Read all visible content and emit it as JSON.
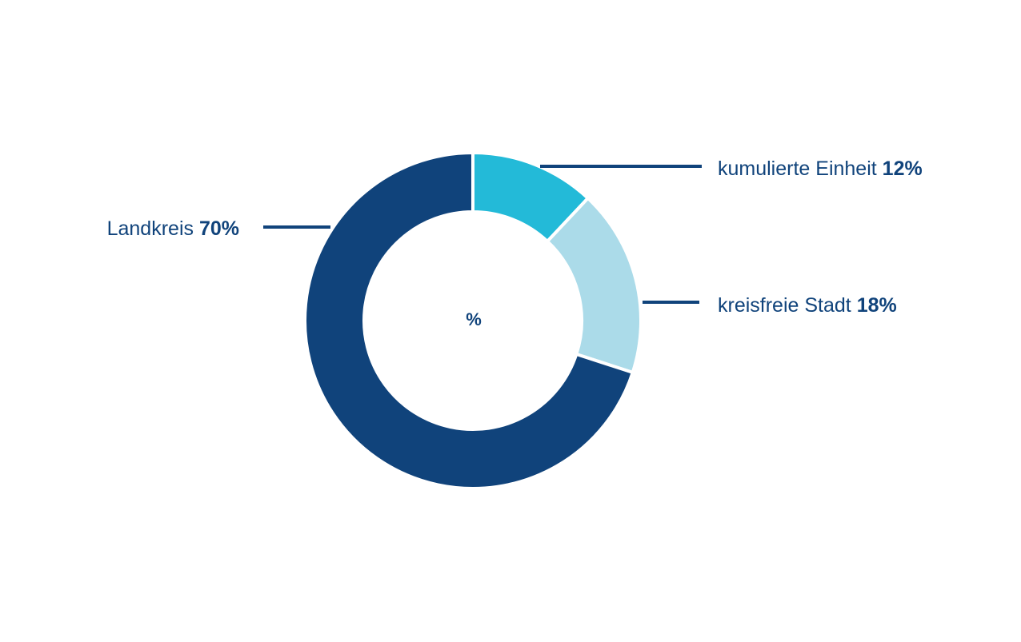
{
  "chart_data": {
    "type": "pie",
    "variant": "donut",
    "center_label": "%",
    "slices": [
      {
        "name": "kumulierte Einheit",
        "value": 12,
        "value_label": "12%",
        "color": "#23bad8"
      },
      {
        "name": "kreisfreie Stadt",
        "value": 18,
        "value_label": "18%",
        "color": "#abdbe9"
      },
      {
        "name": "Landkreis",
        "value": 70,
        "value_label": "70%",
        "color": "#10437b"
      }
    ],
    "label_color": "#10437b",
    "leader_color": "#10437b",
    "separator_color": "#ffffff",
    "start_angle_deg": 0,
    "direction": "clockwise",
    "legend": "none"
  }
}
